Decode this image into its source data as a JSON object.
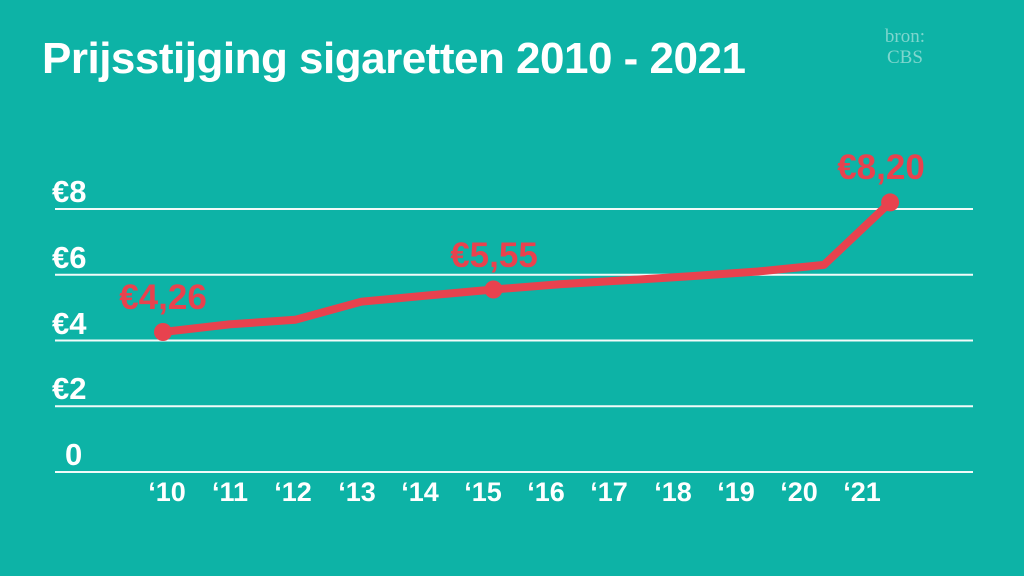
{
  "header": {
    "title": "Prijsstijging sigaretten 2010 - 2021",
    "source_label": "bron:",
    "source_name": "CBS"
  },
  "colors": {
    "background": "#0db3a6",
    "line": "#e8424e",
    "data_label": "#e8424e",
    "axis_text": "#ffffff",
    "source_text": "#7fd6ce",
    "gridline": "#f1fbf9"
  },
  "chart_data": {
    "type": "line",
    "title": "Prijsstijging sigaretten 2010 - 2021",
    "source": "CBS",
    "x": [
      2010,
      2011,
      2012,
      2013,
      2014,
      2015,
      2016,
      2017,
      2018,
      2019,
      2020,
      2021
    ],
    "x_tick_labels": [
      "‘10",
      "‘11",
      "‘12",
      "‘13",
      "‘14",
      "‘15",
      "‘16",
      "‘17",
      "‘18",
      "‘19",
      "‘20",
      "‘21"
    ],
    "values": [
      4.26,
      4.49,
      4.63,
      5.18,
      5.37,
      5.55,
      5.71,
      5.83,
      5.96,
      6.1,
      6.3,
      8.2
    ],
    "labeled_points": [
      {
        "x": 2010,
        "value": 4.26,
        "label": "€4,26"
      },
      {
        "x": 2015,
        "value": 5.55,
        "label": "€5,55"
      },
      {
        "x": 2021,
        "value": 8.2,
        "label": "€8,20"
      }
    ],
    "y_ticks": [
      {
        "value": 0,
        "label": "0"
      },
      {
        "value": 2,
        "label": "€2"
      },
      {
        "value": 4,
        "label": "€4"
      },
      {
        "value": 6,
        "label": "€6"
      },
      {
        "value": 8,
        "label": "€8"
      }
    ],
    "ylim": [
      0,
      9.5
    ],
    "grid": true,
    "legend": false,
    "currency_format": "comma-decimal"
  }
}
